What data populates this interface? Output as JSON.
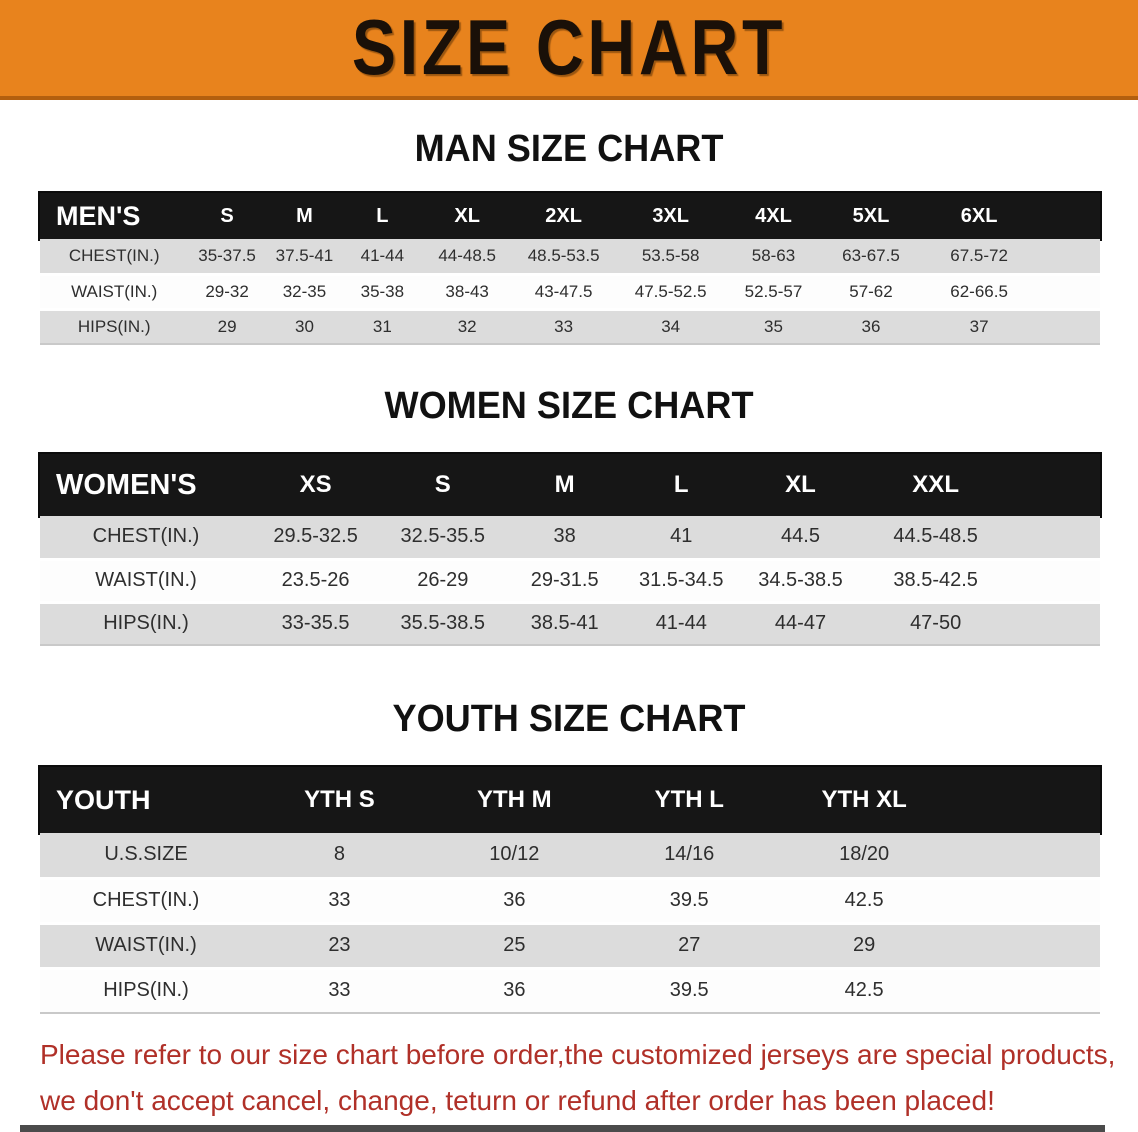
{
  "banner": {
    "title": "SIZE CHART"
  },
  "theme": {
    "banner_bg": "#E8831D",
    "banner_edge": "#B35F0E",
    "banner_text": "#1A1008",
    "header_bg": "#161616",
    "header_text": "#FFFFFF",
    "row_shade": "#DCDCDC",
    "row_plain": "#FDFDFD",
    "body_text": "#2E2E2E",
    "red": "#B03028"
  },
  "tables": [
    {
      "name": "men",
      "heading": "MAN SIZE CHART",
      "label": "MEN'S",
      "columns": [
        "S",
        "M",
        "L",
        "XL",
        "2XL",
        "3XL",
        "4XL",
        "5XL",
        "6XL"
      ],
      "rows": [
        {
          "label": "CHEST(IN.)",
          "values": [
            "35-37.5",
            "37.5-41",
            "41-44",
            "44-48.5",
            "48.5-53.5",
            "53.5-58",
            "58-63",
            "63-67.5",
            "67.5-72"
          ]
        },
        {
          "label": "WAIST(IN.)",
          "values": [
            "29-32",
            "32-35",
            "35-38",
            "38-43",
            "43-47.5",
            "47.5-52.5",
            "52.5-57",
            "57-62",
            "62-66.5"
          ]
        },
        {
          "label": "HIPS(IN.)",
          "values": [
            "29",
            "30",
            "31",
            "32",
            "33",
            "34",
            "35",
            "36",
            "37"
          ]
        }
      ]
    },
    {
      "name": "women",
      "heading": "WOMEN SIZE CHART",
      "label": "WOMEN'S",
      "columns": [
        "XS",
        "S",
        "M",
        "L",
        "XL",
        "XXL"
      ],
      "rows": [
        {
          "label": "CHEST(IN.)",
          "values": [
            "29.5-32.5",
            "32.5-35.5",
            "38",
            "41",
            "44.5",
            "44.5-48.5"
          ]
        },
        {
          "label": "WAIST(IN.)",
          "values": [
            "23.5-26",
            "26-29",
            "29-31.5",
            "31.5-34.5",
            "34.5-38.5",
            "38.5-42.5"
          ]
        },
        {
          "label": "HIPS(IN.)",
          "values": [
            "33-35.5",
            "35.5-38.5",
            "38.5-41",
            "41-44",
            "44-47",
            "47-50"
          ]
        }
      ]
    },
    {
      "name": "youth",
      "heading": "YOUTH SIZE CHART",
      "label": "YOUTH",
      "columns": [
        "YTH S",
        "YTH M",
        "YTH L",
        "YTH XL"
      ],
      "rows": [
        {
          "label": "U.S.SIZE",
          "values": [
            "8",
            "10/12",
            "14/16",
            "18/20"
          ]
        },
        {
          "label": "CHEST(IN.)",
          "values": [
            "33",
            "36",
            "39.5",
            "42.5"
          ]
        },
        {
          "label": "WAIST(IN.)",
          "values": [
            "23",
            "25",
            "27",
            "29"
          ]
        },
        {
          "label": "HIPS(IN.)",
          "values": [
            "33",
            "36",
            "39.5",
            "42.5"
          ]
        }
      ]
    }
  ],
  "disclaimer": {
    "line1": "Please refer to our size chart before order,the customized jerseys are special products,",
    "line2": "we don't accept cancel, change, teturn or refund after order has been placed!"
  }
}
